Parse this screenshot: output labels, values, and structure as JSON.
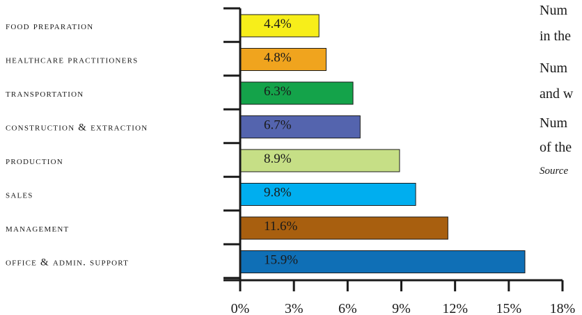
{
  "chart_data": {
    "type": "bar",
    "orientation": "horizontal",
    "categories": [
      "FOOD PREPARATION",
      "HEALTHCARE PRACTITIONERS",
      "TRANSPORTATION",
      "CONSTRUCTION & EXTRACTION",
      "PRODUCTION",
      "SALES",
      "MANAGEMENT",
      "OFFICE & ADMIN. SUPPORT"
    ],
    "values": [
      4.4,
      4.8,
      6.3,
      6.7,
      8.9,
      9.8,
      11.6,
      15.9
    ],
    "value_labels": [
      "4.4%",
      "4.8%",
      "6.3%",
      "6.7%",
      "8.9%",
      "9.8%",
      "11.6%",
      "15.9%"
    ],
    "colors": [
      "#f7ee1a",
      "#f0a41e",
      "#14a34a",
      "#5464ae",
      "#c6df86",
      "#00aeef",
      "#a85f0f",
      "#0f6fb6"
    ],
    "xlim": [
      0,
      18
    ],
    "xticks": [
      0,
      3,
      6,
      9,
      12,
      15,
      18
    ],
    "xtick_labels": [
      "0%",
      "3%",
      "6%",
      "9%",
      "12%",
      "15%",
      "18%"
    ],
    "title": "",
    "xlabel": "",
    "ylabel": "",
    "grid": false
  },
  "side_text": {
    "lines": [
      "Num",
      "in the",
      "Num",
      "and w",
      "Num",
      "of the"
    ],
    "source": "Source"
  }
}
